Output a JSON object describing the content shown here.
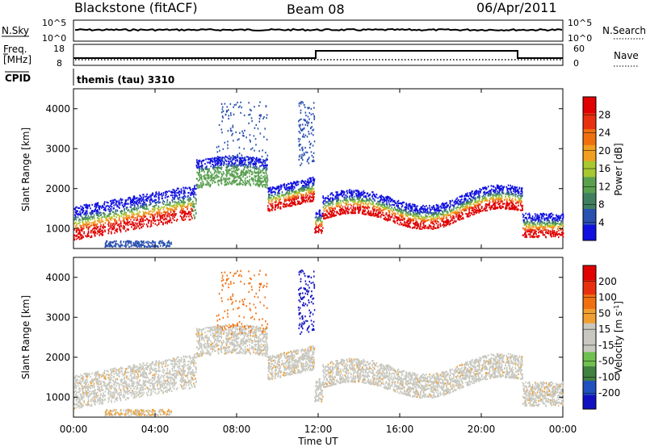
{
  "header": {
    "title": "Blackstone (fitACF)",
    "beam": "Beam 08",
    "date": "06/Apr/2011"
  },
  "panels": {
    "nsky": {
      "label": "N.Sky",
      "ticks": [
        "10^5",
        "10^0"
      ],
      "right_ticks": [
        "10^5",
        "10^0"
      ],
      "right_label": "N.Search"
    },
    "freq": {
      "label_top": "Freq.",
      "label_bottom": "[MHz]",
      "ticks": [
        "18",
        "8"
      ],
      "right_ticks": [
        "60",
        "0"
      ],
      "right_label": "Nave"
    },
    "cpid": {
      "label": "CPID",
      "text": "themis (tau) 3310"
    }
  },
  "chart_data": [
    {
      "type": "heatmap",
      "ylabel": "Slant Range [km]",
      "yticks": [
        "1000",
        "2000",
        "3000",
        "4000"
      ],
      "ylim": [
        500,
        4500
      ],
      "colorbar_label": "Power [dB]",
      "colorbar_ticks": [
        "4",
        "8",
        "12",
        "16",
        "20",
        "24",
        "28"
      ],
      "colorbar_colors": [
        "#1010e0",
        "#2a50b0",
        "#3f7f60",
        "#5aa050",
        "#a8c830",
        "#f0a020",
        "#f07010",
        "#e83010",
        "#e00000"
      ]
    },
    {
      "type": "heatmap",
      "ylabel": "Slant Range [km]",
      "yticks": [
        "1000",
        "2000",
        "3000",
        "4000"
      ],
      "ylim": [
        500,
        4500
      ],
      "xlabel": "Time UT",
      "xticks": [
        "00:00",
        "04:00",
        "08:00",
        "12:00",
        "16:00",
        "20:00",
        "00:00"
      ],
      "colorbar_label_main": "Velocity [m s",
      "colorbar_label_sup": "-1",
      "colorbar_label_end": "]",
      "colorbar_ticks": [
        "200",
        "100",
        "50",
        "15",
        "-15",
        "-50",
        "-100",
        "-200"
      ],
      "colorbar_colors": [
        "#1010c0",
        "#2050c0",
        "#408040",
        "#70c050",
        "#c8c8c0",
        "#c8c8c0",
        "#f0a030",
        "#f07010",
        "#e83010",
        "#e00000"
      ]
    }
  ]
}
